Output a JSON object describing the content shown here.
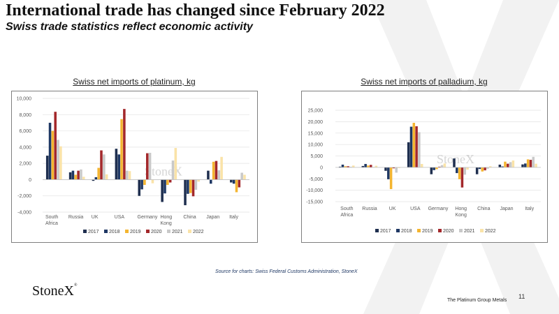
{
  "page": {
    "title": "International trade has changed since February 2022",
    "subtitle": "Swiss trade statistics reflect economic activity",
    "source": "Source for charts: Swiss Federal Customs Administration, StoneX",
    "logo_text": "StoneX",
    "logo_tm": "®",
    "page_number": "11",
    "footer": "The Platinum Group Metals"
  },
  "colors": {
    "2017": "#1f2f4f",
    "2018": "#1f3864",
    "2019": "#f4b530",
    "2020": "#a3282b",
    "2021": "#c9c9c9",
    "2022": "#fae3a8",
    "watermark": "#d9d9d9"
  },
  "chart_data": [
    {
      "type": "bar",
      "title": "Swiss net imports of platinum, kg",
      "watermark": "StoneX",
      "categories": [
        "South Africa",
        "Russia",
        "UK",
        "USA",
        "Germany",
        "Hong Kong",
        "China",
        "Japan",
        "Italy"
      ],
      "ylim": [
        -4000,
        10000
      ],
      "yticks": [
        -4000,
        -2000,
        0,
        2000,
        4000,
        6000,
        8000,
        10000
      ],
      "ytick_labels": [
        "-4,000",
        "-2,000",
        "0",
        "2,000",
        "4,000",
        "6,000",
        "8,000",
        "10,000"
      ],
      "legend_position": "bottom",
      "series": [
        {
          "name": "2017",
          "values": [
            2950,
            900,
            -150,
            3800,
            -2000,
            -2750,
            -3150,
            1100,
            -350
          ]
        },
        {
          "name": "2018",
          "values": [
            7000,
            1100,
            300,
            3100,
            -1200,
            -1700,
            -1750,
            -500,
            -500
          ]
        },
        {
          "name": "2019",
          "values": [
            6000,
            600,
            1450,
            7450,
            -650,
            -650,
            -1650,
            2200,
            -1550
          ]
        },
        {
          "name": "2020",
          "values": [
            8350,
            1100,
            3600,
            8700,
            3250,
            -350,
            -2050,
            2300,
            -950
          ]
        },
        {
          "name": "2021",
          "values": [
            4900,
            1250,
            3100,
            1100,
            3300,
            2350,
            -1250,
            1150,
            850
          ]
        },
        {
          "name": "2022",
          "values": [
            4100,
            350,
            650,
            1050,
            -450,
            3900,
            -250,
            2800,
            600
          ]
        }
      ]
    },
    {
      "type": "bar",
      "title": "Swiss net imports of palladium, kg",
      "watermark": "StoneX",
      "categories": [
        "South Africa",
        "Russia",
        "UK",
        "USA",
        "Germany",
        "Hong Kong",
        "China",
        "Japan",
        "Italy"
      ],
      "ylim": [
        -15000,
        25000
      ],
      "yticks": [
        -15000,
        -10000,
        -5000,
        0,
        5000,
        10000,
        15000,
        20000,
        25000
      ],
      "ytick_labels": [
        "-15,000",
        "-10,000",
        "-5,000",
        "0",
        "5,000",
        "10,000",
        "15,000",
        "20,000",
        "25,000"
      ],
      "legend_position": "bottom",
      "series": [
        {
          "name": "2017",
          "values": [
            300,
            600,
            -1500,
            11000,
            -3000,
            3900,
            -3000,
            1200,
            1300
          ]
        },
        {
          "name": "2018",
          "values": [
            1200,
            1500,
            -5200,
            17800,
            -1200,
            -2500,
            -700,
            400,
            1700
          ]
        },
        {
          "name": "2019",
          "values": [
            500,
            800,
            -9500,
            19500,
            -800,
            -5200,
            -1800,
            2500,
            3500
          ]
        },
        {
          "name": "2020",
          "values": [
            500,
            1100,
            -400,
            18000,
            300,
            -8800,
            -1300,
            1600,
            3300
          ]
        },
        {
          "name": "2021",
          "values": [
            300,
            200,
            -2300,
            15400,
            1000,
            -3200,
            -600,
            2300,
            4600
          ]
        },
        {
          "name": "2022",
          "values": [
            800,
            700,
            -300,
            1500,
            1700,
            -1000,
            500,
            3000,
            1600
          ]
        }
      ]
    }
  ]
}
